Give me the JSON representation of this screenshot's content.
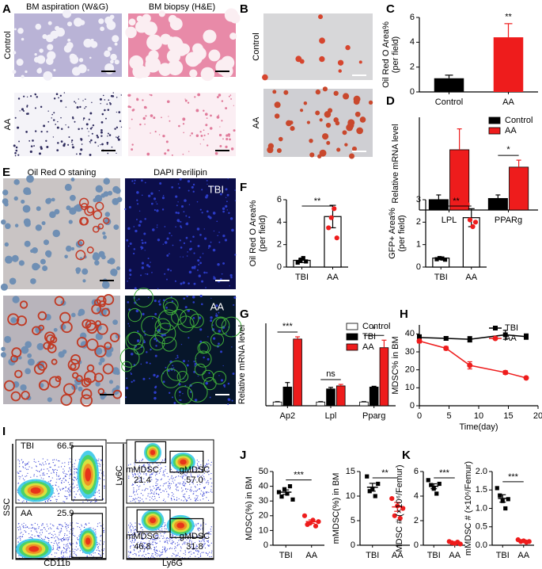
{
  "panel_labels": [
    "A",
    "B",
    "C",
    "D",
    "E",
    "F",
    "G",
    "H",
    "I",
    "J",
    "K"
  ],
  "figure": {
    "A": {
      "col_titles": [
        "BM aspiration (W&G)",
        "BM biopsy (H&E)"
      ],
      "row_labels": [
        "Control",
        "AA"
      ]
    },
    "B": {
      "row_labels": [
        "Control",
        "AA"
      ]
    },
    "E": {
      "col_titles": [
        "Oil Red O staning",
        "DAPI Perilipin"
      ],
      "tags": [
        "TBI",
        "AA"
      ]
    },
    "I": {
      "tags": [
        "TBI",
        "AA"
      ],
      "gates": [
        "66.5",
        "25.9"
      ],
      "axes": [
        "SSC",
        "CD11b",
        "Ly6C",
        "Ly6G"
      ],
      "top_gates": [
        "mMDSC",
        "21.4",
        "gMDSC",
        "57.0"
      ],
      "bottom_gates": [
        "mMDSC",
        "46.8",
        "gMDSC",
        "31.8"
      ]
    }
  },
  "chart_data": [
    {
      "type": "bar",
      "categories": [
        "Control",
        "AA"
      ],
      "values": [
        1.1,
        4.4
      ],
      "errors": [
        0.25,
        1.1
      ],
      "colors": [
        "#000000",
        "#ee1c1c"
      ],
      "y_label": [
        "Oil Red O Area%",
        "(per field)"
      ],
      "ylim": [
        0,
        6
      ],
      "yticks": [
        0,
        2,
        4,
        6
      ],
      "significance": "**"
    },
    {
      "type": "grouped_bar",
      "categories": [
        "LPL",
        "PPARg"
      ],
      "series": [
        {
          "name": "Control",
          "color": "#000000",
          "values": [
            0.9,
            1.0
          ],
          "errors": [
            0.4,
            0.3
          ]
        },
        {
          "name": "AA",
          "color": "#ee1c1c",
          "values": [
            5.2,
            3.7
          ],
          "errors": [
            1.8,
            0.6
          ]
        }
      ],
      "y_label": [
        "Relative mRNA level"
      ],
      "ylim": [
        0,
        8
      ],
      "annotations": [
        {
          "text": "*",
          "category": "PPARg"
        }
      ],
      "legend": "top-right"
    },
    {
      "type": "dot_bar",
      "bars": true,
      "categories": [
        "TBI",
        "AA"
      ],
      "values": [
        0.6,
        4.5
      ],
      "errors": [
        0.2,
        1.0
      ],
      "points": [
        [
          0.4,
          0.6,
          0.8,
          0.5
        ],
        [
          3.5,
          4.4,
          5.2,
          2.6
        ]
      ],
      "colors": [
        "#000000",
        "#ee1c1c"
      ],
      "markers": [
        "square",
        "circle"
      ],
      "y_label": [
        "Oil Red O Area%",
        "(per field)"
      ],
      "ylim": [
        0,
        6
      ],
      "yticks": [
        0,
        2,
        4,
        6
      ],
      "significance": "**"
    },
    {
      "type": "dot_bar",
      "bars": true,
      "categories": [
        "TBI",
        "AA"
      ],
      "values": [
        0.4,
        2.2
      ],
      "errors": [
        0.05,
        0.4
      ],
      "points": [
        [
          0.35,
          0.4,
          0.38,
          0.33
        ],
        [
          2.8,
          2.1,
          1.8,
          2.0
        ]
      ],
      "colors": [
        "#000000",
        "#ee1c1c"
      ],
      "markers": [
        "square",
        "circle"
      ],
      "y_label": [
        "GFP+ Area%",
        "(per field)"
      ],
      "ylim": [
        0,
        3
      ],
      "yticks": [
        0,
        1,
        2,
        3
      ],
      "significance": "**"
    },
    {
      "type": "grouped_bar",
      "categories": [
        "Ap2",
        "Lpl",
        "Pparg"
      ],
      "series": [
        {
          "name": "Control",
          "color": "#ffffff",
          "values": [
            1,
            1,
            1
          ],
          "errors": [
            0.1,
            0.1,
            0.1
          ]
        },
        {
          "name": "TBI",
          "color": "#000000",
          "values": [
            5.0,
            4.5,
            5.0
          ],
          "errors": [
            1.2,
            0.4,
            0.2
          ]
        },
        {
          "name": "AA",
          "color": "#ee1c1c",
          "values": [
            17.8,
            5.3,
            15.5
          ],
          "errors": [
            0.6,
            0.4,
            2.0
          ]
        }
      ],
      "y_label": [
        "Relative mRNA level"
      ],
      "ylim": [
        0,
        22
      ],
      "annotations": [
        {
          "text": "***",
          "category": "Ap2"
        },
        {
          "text": "ns",
          "category": "Lpl"
        },
        {
          "text": "*",
          "category": "Pparg"
        }
      ],
      "legend": "top-right"
    },
    {
      "type": "line",
      "x": [
        0,
        4.5,
        8.5,
        14.5,
        18
      ],
      "series": [
        {
          "name": "TBI",
          "color": "#000000",
          "marker": "square",
          "values": [
            38,
            37.5,
            37,
            39.5,
            38.5
          ],
          "errors": [
            1.5,
            1,
            1.5,
            2.5,
            1.5
          ]
        },
        {
          "name": "AA",
          "color": "#ee1c1c",
          "marker": "circle",
          "values": [
            36,
            32,
            22.5,
            18.5,
            15.5
          ],
          "errors": [
            1,
            1,
            2,
            1,
            0.5
          ]
        }
      ],
      "x_label": "Time(day)",
      "y_label": [
        "MDSC% in BM"
      ],
      "xlim": [
        0,
        20
      ],
      "xticks": [
        0,
        5,
        10,
        15,
        20
      ],
      "ylim": [
        0,
        45
      ],
      "yticks": [
        0,
        10,
        20,
        30,
        40
      ],
      "legend": "top-right"
    },
    {
      "type": "dot_bar",
      "bars": false,
      "categories": [
        "TBI",
        "AA"
      ],
      "values": [
        36,
        16
      ],
      "errors": [
        1.5,
        1.2
      ],
      "points": [
        [
          36,
          33,
          38,
          35,
          40,
          31
        ],
        [
          20,
          14,
          15,
          17,
          13,
          16
        ]
      ],
      "colors": [
        "#000000",
        "#ee1c1c"
      ],
      "markers": [
        "square",
        "circle"
      ],
      "y_label": [
        "MDSC(%) in BM"
      ],
      "ylim": [
        0,
        50
      ],
      "yticks": [
        0,
        10,
        20,
        30,
        40,
        50
      ],
      "significance": "***"
    },
    {
      "type": "dot_bar",
      "bars": false,
      "categories": [
        "TBI",
        "AA"
      ],
      "values": [
        11.8,
        7.8
      ],
      "errors": [
        0.8,
        0.9
      ],
      "points": [
        [
          14,
          11,
          11.5,
          10,
          12.5
        ],
        [
          9.5,
          6,
          8,
          5.5,
          7.5
        ]
      ],
      "colors": [
        "#000000",
        "#ee1c1c"
      ],
      "markers": [
        "square",
        "circle"
      ],
      "y_label": [
        "mMDSC(%) in BM"
      ],
      "ylim": [
        0,
        15
      ],
      "yticks": [
        0,
        5,
        10,
        15
      ],
      "significance": "**"
    },
    {
      "type": "dot_bar",
      "bars": false,
      "categories": [
        "TBI",
        "AA"
      ],
      "values": [
        4.8,
        0.2
      ],
      "errors": [
        0.2,
        0.04
      ],
      "points": [
        [
          5.3,
          4.9,
          4.6,
          4.2,
          5.0
        ],
        [
          0.3,
          0.2,
          0.15,
          0.25,
          0.1
        ]
      ],
      "colors": [
        "#000000",
        "#ee1c1c"
      ],
      "markers": [
        "square",
        "circle"
      ],
      "y_label": [
        "MDSC # (×10⁶/Femur)"
      ],
      "ylim": [
        0,
        6
      ],
      "yticks": [
        0,
        2,
        4,
        6
      ],
      "significance": "***"
    },
    {
      "type": "dot_bar",
      "bars": false,
      "categories": [
        "TBI",
        "AA"
      ],
      "values": [
        1.27,
        0.12
      ],
      "errors": [
        0.1,
        0.02
      ],
      "points": [
        [
          1.55,
          1.35,
          1.2,
          1.0,
          1.25
        ],
        [
          0.15,
          0.1,
          0.12,
          0.08,
          0.1
        ]
      ],
      "colors": [
        "#000000",
        "#ee1c1c"
      ],
      "markers": [
        "square",
        "circle"
      ],
      "y_label": [
        "mMDSC # (×10⁶/Femur)"
      ],
      "ylim": [
        0,
        2
      ],
      "yticks": [
        {
          "value": 0,
          "label": "0.0"
        },
        {
          "value": 0.5,
          "label": "0.5"
        },
        {
          "value": 1,
          "label": "1.0"
        },
        {
          "value": 1.5,
          "label": "1.5"
        },
        {
          "value": 2,
          "label": "2.0"
        }
      ],
      "significance": "***"
    }
  ]
}
